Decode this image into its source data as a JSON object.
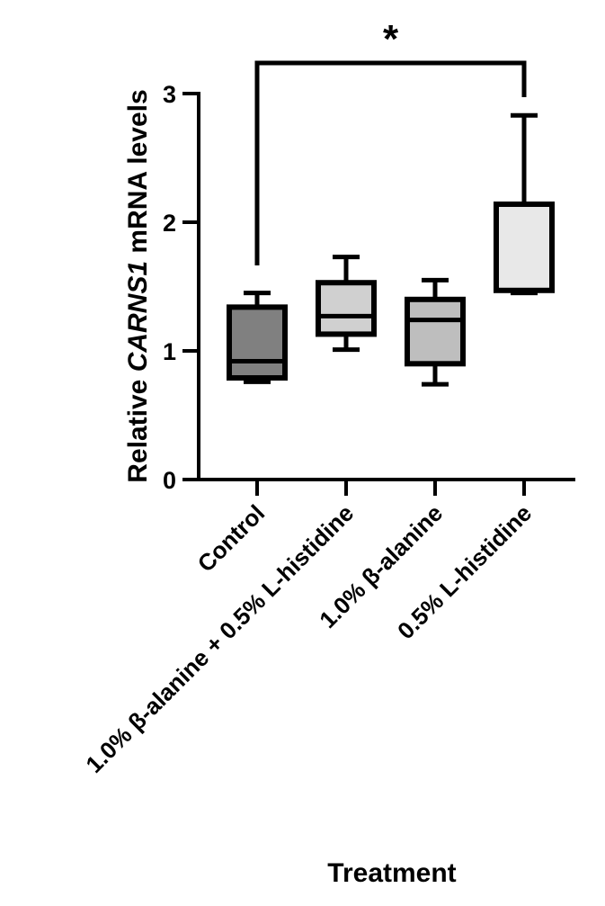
{
  "chart_data": {
    "type": "box",
    "title": "",
    "xlabel": "Treatment",
    "ylabel": {
      "prefix": "Relative ",
      "gene": "CARNS1",
      "suffix": " mRNA levels"
    },
    "ylim": [
      0,
      3
    ],
    "yticks": [
      0,
      1,
      2,
      3
    ],
    "grid": false,
    "legend": null,
    "categories": [
      "Control",
      "1.0% β-alanine + 0.5% L-histidine",
      "1.0% β-alanine",
      "0.5% L-histidine"
    ],
    "series": [
      {
        "name": "Control",
        "whisker_low": 0.76,
        "q1": 0.79,
        "median": 0.92,
        "q3": 1.34,
        "whisker_high": 1.45,
        "fill": "#808080"
      },
      {
        "name": "1.0% β-alanine + 0.5% L-histidine",
        "whisker_low": 1.01,
        "q1": 1.13,
        "median": 1.27,
        "q3": 1.53,
        "whisker_high": 1.73,
        "fill": "#D0D0D0"
      },
      {
        "name": "1.0% β-alanine",
        "whisker_low": 0.74,
        "q1": 0.9,
        "median": 1.24,
        "q3": 1.4,
        "whisker_high": 1.55,
        "fill": "#BEBEBE"
      },
      {
        "name": "0.5% L-histidine",
        "whisker_low": 1.45,
        "q1": 1.47,
        "median": 1.47,
        "q3": 2.14,
        "whisker_high": 2.83,
        "fill": "#E8E8E8"
      }
    ],
    "annotations": [
      {
        "type": "significance-bracket",
        "from": "Control",
        "to": "0.5% L-histidine",
        "label": "*"
      }
    ]
  }
}
